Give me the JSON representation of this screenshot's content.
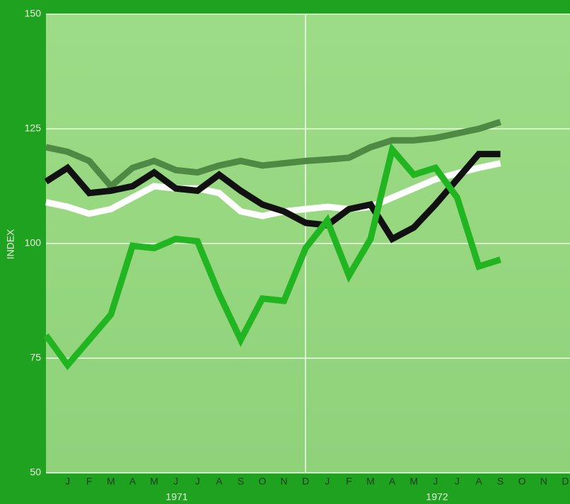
{
  "chart_data": {
    "type": "line",
    "y_label": "INDEX",
    "year_labels": [
      "1971",
      "1972"
    ],
    "categories": [
      null,
      "J",
      "F",
      "M",
      "A",
      "M",
      "J",
      "J",
      "A",
      "S",
      "O",
      "N",
      "D",
      "J",
      "F",
      "M",
      "A",
      "M",
      "J",
      "J",
      "A",
      "S",
      "O",
      "N",
      "D"
    ],
    "series": [
      {
        "color": "#4e8a44",
        "values": [
          121,
          120,
          118,
          112.5,
          116.5,
          118,
          116,
          115.5,
          117,
          118,
          117,
          117.5,
          118,
          118.3,
          118.7,
          121,
          122.5,
          122.5,
          123,
          124,
          125,
          126.5,
          null,
          null,
          null
        ]
      },
      {
        "color": "#ffffff",
        "values": [
          109,
          108,
          106.5,
          107.5,
          110,
          112.5,
          112,
          112,
          111,
          107,
          106,
          107,
          107.5,
          108,
          107.5,
          108,
          110,
          112,
          114,
          115.3,
          116.5,
          117.5,
          null,
          null,
          null
        ]
      },
      {
        "color": "#111111",
        "values": [
          113.5,
          116.5,
          111,
          111.5,
          112.5,
          115.5,
          112,
          111.5,
          115,
          111.5,
          108.5,
          107,
          104.5,
          104,
          107.5,
          108.5,
          101,
          103.5,
          108.5,
          114,
          119.5,
          119.5,
          null,
          null,
          null
        ]
      },
      {
        "color": "#22b522",
        "values": [
          80,
          73.5,
          79,
          84.5,
          99.5,
          99,
          101,
          100.5,
          89,
          79,
          88,
          87.5,
          99,
          105,
          93,
          101,
          120.5,
          115,
          116.5,
          110,
          95,
          96.5,
          null,
          null,
          null
        ]
      }
    ],
    "ylim": [
      50,
      150
    ],
    "yticks": [
      50,
      75,
      100,
      125,
      150
    ],
    "grid": true
  }
}
